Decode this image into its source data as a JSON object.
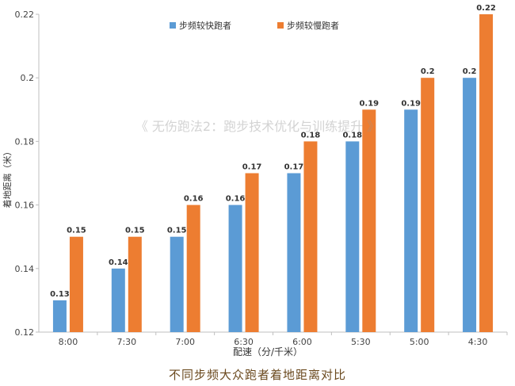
{
  "chart_data": {
    "type": "bar",
    "title": "",
    "xlabel": "配速（分/千米）",
    "ylabel": "着地距离（米）",
    "categories": [
      "8:00",
      "7:30",
      "7:00",
      "6:30",
      "6:00",
      "5:30",
      "5:00",
      "4:30"
    ],
    "series": [
      {
        "name": "步频较快跑者",
        "color": "#5b9bd5",
        "values": [
          0.13,
          0.14,
          0.15,
          0.16,
          0.17,
          0.18,
          0.19,
          0.2
        ]
      },
      {
        "name": "步频较慢跑者",
        "color": "#ed7d31",
        "values": [
          0.15,
          0.15,
          0.16,
          0.17,
          0.18,
          0.19,
          0.2,
          0.22
        ]
      }
    ],
    "ylim": [
      0.12,
      0.22
    ],
    "yticks": [
      0.12,
      0.14,
      0.16,
      0.18,
      0.2,
      0.22
    ],
    "grid": false,
    "legend": "top-center"
  },
  "watermark": "《 无伤跑法2：跑步技术优化与训练提升 》",
  "caption": "不同步频大众跑者着地距离对比"
}
